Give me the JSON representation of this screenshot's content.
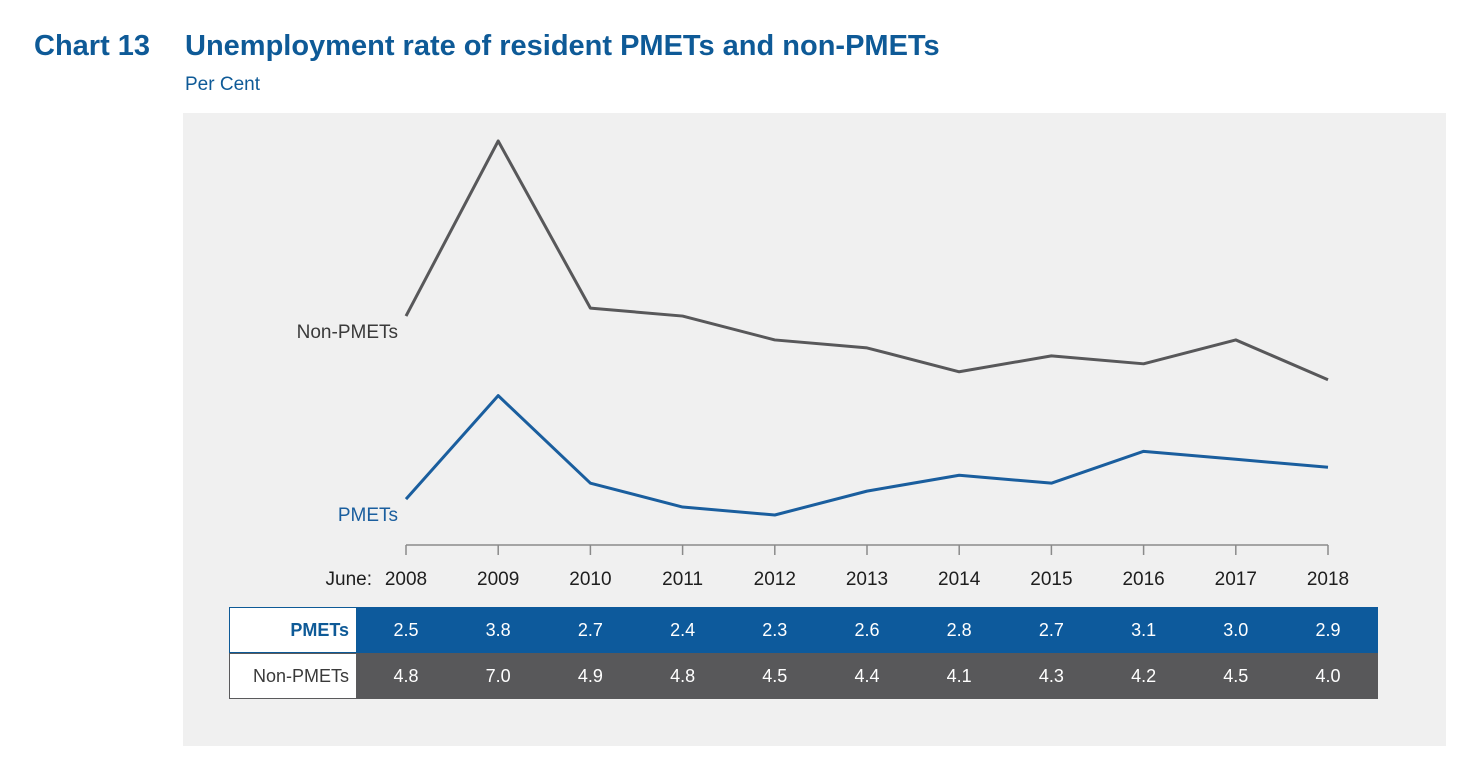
{
  "header": {
    "chart_number": "Chart 13",
    "title": "Unemployment rate of resident PMETs and non-PMETs",
    "subtitle": "Per Cent"
  },
  "colors": {
    "pmets": "#1a5e9e",
    "non_pmets": "#58585a",
    "panel_bg": "#f0f0f0"
  },
  "chart_data": {
    "type": "line",
    "title": "Unemployment rate of resident PMETs and non-PMETs",
    "ylabel": "Per Cent",
    "x_prefix": "June:",
    "categories": [
      "2008",
      "2009",
      "2010",
      "2011",
      "2012",
      "2013",
      "2014",
      "2015",
      "2016",
      "2017",
      "2018"
    ],
    "series": [
      {
        "name": "Non-PMETs",
        "values": [
          4.8,
          7.0,
          4.9,
          4.8,
          4.5,
          4.4,
          4.1,
          4.3,
          4.2,
          4.5,
          4.0
        ]
      },
      {
        "name": "PMETs",
        "values": [
          2.5,
          3.8,
          2.7,
          2.4,
          2.3,
          2.6,
          2.8,
          2.7,
          3.1,
          3.0,
          2.9
        ]
      }
    ],
    "table_values": {
      "PMETs": [
        "2.5",
        "3.8",
        "2.7",
        "2.4",
        "2.3",
        "2.6",
        "2.8",
        "2.7",
        "3.1",
        "3.0",
        "2.9"
      ],
      "Non-PMETs": [
        "4.8",
        "7.0",
        "4.9",
        "4.8",
        "4.5",
        "4.4",
        "4.1",
        "4.3",
        "4.2",
        "4.5",
        "4.0"
      ]
    },
    "grid": false,
    "legend": "inline labels at series start"
  }
}
